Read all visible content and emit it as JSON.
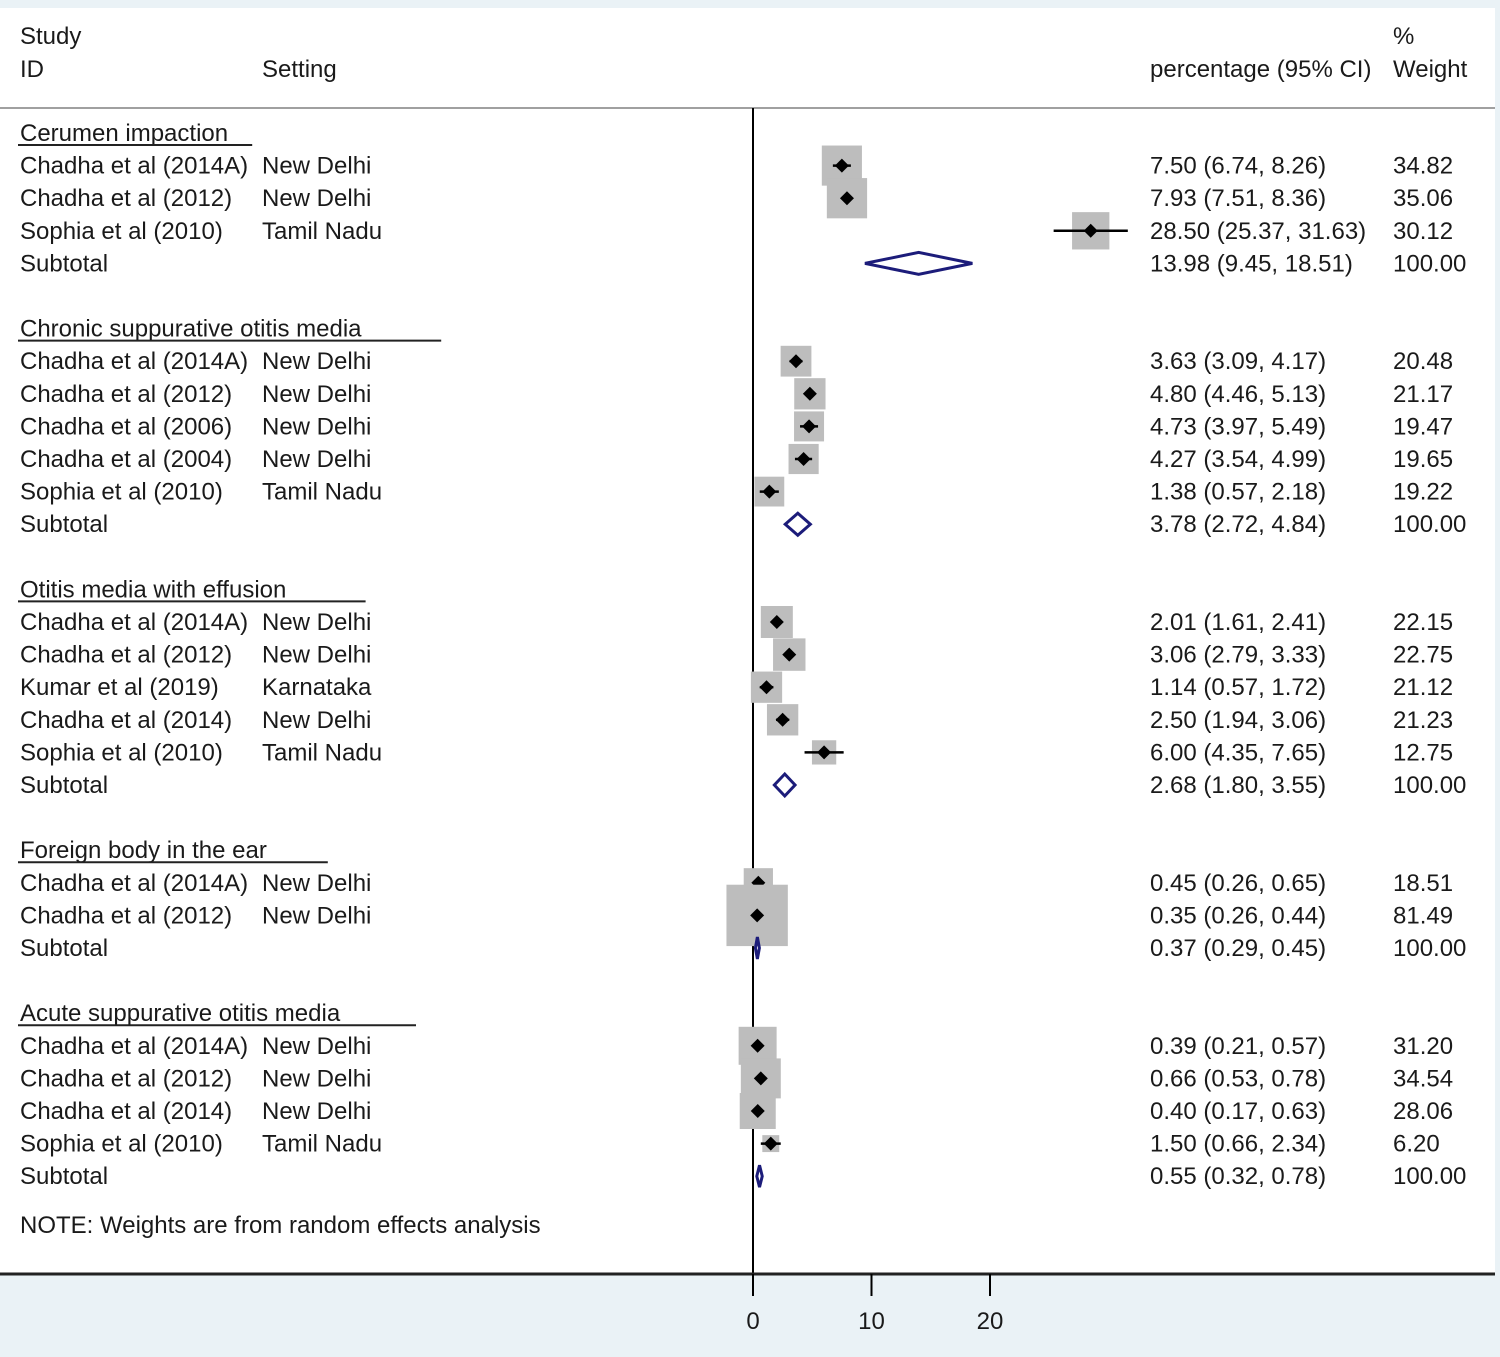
{
  "chart_data": {
    "type": "forest",
    "headers": {
      "study_line1": "Study",
      "study_line2": "ID",
      "setting": "Setting",
      "weight_line1": "%",
      "estimate": "percentage (95% CI)",
      "weight_line2": "Weight"
    },
    "xaxis": {
      "ticks": [
        0,
        10,
        20
      ],
      "tick_labels": [
        "0",
        "10",
        "20"
      ],
      "null_line": 0
    },
    "groups": [
      {
        "name": "Cerumen impaction",
        "studies": [
          {
            "study": "Chadha et al (2014A)",
            "setting": "New Delhi",
            "est": 7.5,
            "lo": 6.74,
            "hi": 8.26,
            "label": "7.50 (6.74, 8.26)",
            "weight": "34.82"
          },
          {
            "study": "Chadha et al (2012)",
            "setting": "New Delhi",
            "est": 7.93,
            "lo": 7.51,
            "hi": 8.36,
            "label": "7.93 (7.51, 8.36)",
            "weight": "35.06"
          },
          {
            "study": "Sophia et al (2010)",
            "setting": "Tamil Nadu",
            "est": 28.5,
            "lo": 25.37,
            "hi": 31.63,
            "label": "28.50 (25.37, 31.63)",
            "weight": "30.12"
          }
        ],
        "subtotal": {
          "label": "Subtotal",
          "est": 13.98,
          "lo": 9.45,
          "hi": 18.51,
          "text": "13.98 (9.45, 18.51)",
          "weight": "100.00"
        }
      },
      {
        "name": "Chronic suppurative otitis media",
        "studies": [
          {
            "study": "Chadha et al (2014A)",
            "setting": "New Delhi",
            "est": 3.63,
            "lo": 3.09,
            "hi": 4.17,
            "label": "3.63 (3.09, 4.17)",
            "weight": "20.48"
          },
          {
            "study": "Chadha et al (2012)",
            "setting": "New Delhi",
            "est": 4.8,
            "lo": 4.46,
            "hi": 5.13,
            "label": "4.80 (4.46, 5.13)",
            "weight": "21.17"
          },
          {
            "study": "Chadha et al (2006)",
            "setting": "New Delhi",
            "est": 4.73,
            "lo": 3.97,
            "hi": 5.49,
            "label": "4.73 (3.97, 5.49)",
            "weight": "19.47"
          },
          {
            "study": "Chadha et al (2004)",
            "setting": "New Delhi",
            "est": 4.27,
            "lo": 3.54,
            "hi": 4.99,
            "label": "4.27 (3.54, 4.99)",
            "weight": "19.65"
          },
          {
            "study": "Sophia et al (2010)",
            "setting": "Tamil Nadu",
            "est": 1.38,
            "lo": 0.57,
            "hi": 2.18,
            "label": "1.38 (0.57, 2.18)",
            "weight": "19.22"
          }
        ],
        "subtotal": {
          "label": "Subtotal",
          "est": 3.78,
          "lo": 2.72,
          "hi": 4.84,
          "text": "3.78 (2.72, 4.84)",
          "weight": "100.00"
        }
      },
      {
        "name": "Otitis media with effusion",
        "studies": [
          {
            "study": "Chadha et al (2014A)",
            "setting": "New Delhi",
            "est": 2.01,
            "lo": 1.61,
            "hi": 2.41,
            "label": "2.01 (1.61, 2.41)",
            "weight": "22.15"
          },
          {
            "study": "Chadha et al (2012)",
            "setting": "New Delhi",
            "est": 3.06,
            "lo": 2.79,
            "hi": 3.33,
            "label": "3.06 (2.79, 3.33)",
            "weight": "22.75"
          },
          {
            "study": "Kumar et al (2019)",
            "setting": "Karnataka",
            "est": 1.14,
            "lo": 0.57,
            "hi": 1.72,
            "label": "1.14 (0.57, 1.72)",
            "weight": "21.12"
          },
          {
            "study": "Chadha et al (2014)",
            "setting": "New Delhi",
            "est": 2.5,
            "lo": 1.94,
            "hi": 3.06,
            "label": "2.50 (1.94, 3.06)",
            "weight": "21.23"
          },
          {
            "study": "Sophia et al (2010)",
            "setting": "Tamil Nadu",
            "est": 6.0,
            "lo": 4.35,
            "hi": 7.65,
            "label": "6.00 (4.35, 7.65)",
            "weight": "12.75"
          }
        ],
        "subtotal": {
          "label": "Subtotal",
          "est": 2.68,
          "lo": 1.8,
          "hi": 3.55,
          "text": "2.68 (1.80, 3.55)",
          "weight": "100.00"
        }
      },
      {
        "name": "Foreign body in the ear",
        "studies": [
          {
            "study": "Chadha et al (2014A)",
            "setting": "New Delhi",
            "est": 0.45,
            "lo": 0.26,
            "hi": 0.65,
            "label": "0.45 (0.26, 0.65)",
            "weight": "18.51"
          },
          {
            "study": "Chadha et al (2012)",
            "setting": "New Delhi",
            "est": 0.35,
            "lo": 0.26,
            "hi": 0.44,
            "label": "0.35 (0.26, 0.44)",
            "weight": "81.49"
          }
        ],
        "subtotal": {
          "label": "Subtotal",
          "est": 0.37,
          "lo": 0.29,
          "hi": 0.45,
          "text": "0.37 (0.29, 0.45)",
          "weight": "100.00"
        }
      },
      {
        "name": "Acute suppurative otitis media",
        "studies": [
          {
            "study": "Chadha et al (2014A)",
            "setting": "New Delhi",
            "est": 0.39,
            "lo": 0.21,
            "hi": 0.57,
            "label": "0.39 (0.21, 0.57)",
            "weight": "31.20"
          },
          {
            "study": "Chadha et al (2012)",
            "setting": "New Delhi",
            "est": 0.66,
            "lo": 0.53,
            "hi": 0.78,
            "label": "0.66 (0.53, 0.78)",
            "weight": "34.54"
          },
          {
            "study": "Chadha et al (2014)",
            "setting": "New Delhi",
            "est": 0.4,
            "lo": 0.17,
            "hi": 0.63,
            "label": "0.40 (0.17, 0.63)",
            "weight": "28.06"
          },
          {
            "study": "Sophia et al (2010)",
            "setting": "Tamil Nadu",
            "est": 1.5,
            "lo": 0.66,
            "hi": 2.34,
            "label": "1.50 (0.66, 2.34)",
            "weight": "6.20"
          }
        ],
        "subtotal": {
          "label": "Subtotal",
          "est": 0.55,
          "lo": 0.32,
          "hi": 0.78,
          "text": "0.55 (0.32, 0.78)",
          "weight": "100.00"
        }
      }
    ],
    "note": "NOTE: Weights are from random effects analysis",
    "colors": {
      "box": "#bdbdbd",
      "diamond": "#1c1c7a",
      "point": "#000000",
      "background": "#eaf2f6"
    }
  }
}
